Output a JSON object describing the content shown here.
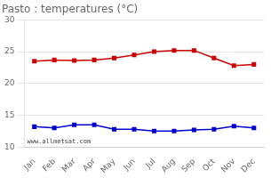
{
  "chart_data": {
    "type": "line",
    "title": "Pasto : temperatures (°C)",
    "categories": [
      "Jan",
      "Feb",
      "Mar",
      "Apr",
      "May",
      "Jun",
      "Jul",
      "Aug",
      "Sep",
      "Oct",
      "Nov",
      "Dec"
    ],
    "series": [
      {
        "color": "#cc0000",
        "marker": "square",
        "line_style": "solid",
        "values": [
          23.5,
          23.7,
          23.6,
          23.7,
          24.0,
          24.5,
          25.0,
          25.2,
          25.2,
          24.0,
          22.8,
          23.0
        ]
      },
      {
        "color": "#0000cc",
        "marker": "square",
        "line_style": "solid",
        "values": [
          13.2,
          13.0,
          13.5,
          13.5,
          12.8,
          12.8,
          12.5,
          12.5,
          12.7,
          12.8,
          13.3,
          13.0
        ]
      }
    ],
    "ylim": [
      10,
      30
    ],
    "yticks": [
      10,
      15,
      20,
      25,
      30
    ],
    "grid": "y",
    "annotations": [
      "www.allmetsat.com"
    ]
  }
}
